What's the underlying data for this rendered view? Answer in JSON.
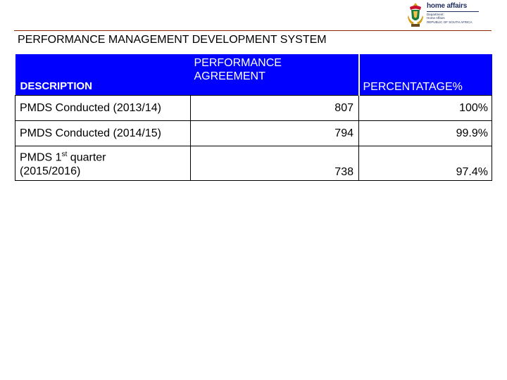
{
  "logo": {
    "brand": "home affairs",
    "line1": "Department:",
    "line2": "Home Affairs",
    "line3": "REPUBLIC OF SOUTH AFRICA"
  },
  "title": "PERFORMANCE MANAGEMENT DEVELOPMENT SYSTEM",
  "table": {
    "headers": {
      "description": "DESCRIPTION",
      "agreement_line1": "PERFORMANCE",
      "agreement_line2": "AGREEMENT",
      "percentage": "PERCENTATAGE%"
    },
    "rows": [
      {
        "description": "PMDS Conducted (2013/14)",
        "agreement": "807",
        "percentage": "100%"
      },
      {
        "description": "PMDS Conducted (2014/15)",
        "agreement": "794",
        "percentage": "99.9%"
      },
      {
        "description_pre": "PMDS 1",
        "description_sup": "st",
        "description_post": " quarter",
        "description_line2": "(2015/2016)",
        "agreement": "738",
        "percentage": "97.4%"
      }
    ]
  }
}
